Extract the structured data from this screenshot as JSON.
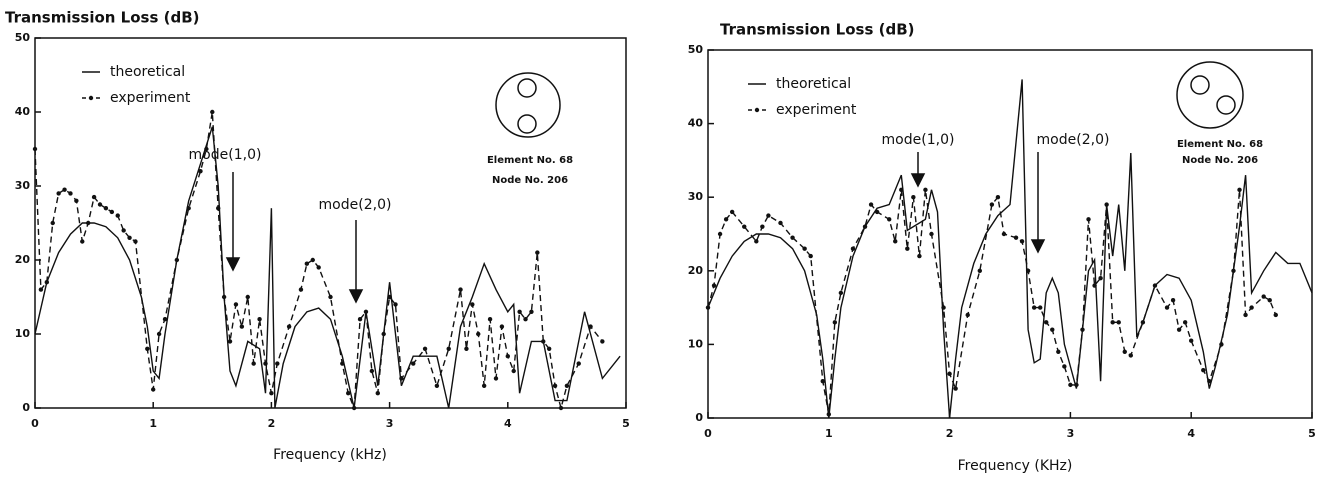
{
  "chart_data": [
    {
      "type": "line",
      "title": "Transmission Loss (dB)",
      "xlabel": "Frequency (kHz)",
      "xlim": [
        0,
        5
      ],
      "ylim": [
        0,
        50
      ],
      "xticks": [
        0,
        1,
        2,
        3,
        4,
        5
      ],
      "yticks": [
        0,
        10,
        20,
        30,
        40,
        50
      ],
      "annotations": [
        "mode(1,0)",
        "mode(2,0)",
        "Element No. 68",
        "Node No. 206"
      ],
      "series": [
        {
          "name": "theoretical",
          "color": "#111",
          "style": "solid",
          "x": [
            0,
            0.1,
            0.2,
            0.3,
            0.4,
            0.5,
            0.6,
            0.7,
            0.8,
            0.9,
            0.95,
            1.0,
            1.05,
            1.1,
            1.2,
            1.3,
            1.4,
            1.5,
            1.55,
            1.6,
            1.65,
            1.7,
            1.8,
            1.9,
            1.95,
            2.0,
            2.03,
            2.1,
            2.2,
            2.3,
            2.4,
            2.5,
            2.6,
            2.7,
            2.8,
            2.9,
            3.0,
            3.1,
            3.2,
            3.3,
            3.4,
            3.5,
            3.6,
            3.7,
            3.8,
            3.9,
            4.0,
            4.05,
            4.1,
            4.2,
            4.3,
            4.4,
            4.5,
            4.6,
            4.65,
            4.8,
            4.95
          ],
          "values": [
            10,
            17,
            21,
            23.5,
            25,
            25,
            24.5,
            23,
            20,
            15,
            11,
            5,
            4,
            10,
            20,
            28,
            33,
            38,
            30,
            15,
            5,
            3,
            9,
            8,
            2,
            27,
            0,
            6,
            11,
            13,
            13.5,
            12,
            7,
            0,
            13,
            3,
            17,
            3,
            7,
            7,
            7,
            0,
            11,
            15,
            19.5,
            16,
            13,
            14,
            2,
            9,
            9,
            1,
            1,
            9,
            13,
            4,
            7
          ]
        },
        {
          "name": "experiment",
          "color": "#111",
          "style": "dashed",
          "x": [
            0,
            0.05,
            0.1,
            0.15,
            0.2,
            0.25,
            0.3,
            0.35,
            0.4,
            0.45,
            0.5,
            0.55,
            0.6,
            0.65,
            0.7,
            0.75,
            0.8,
            0.85,
            0.95,
            1.0,
            1.05,
            1.1,
            1.2,
            1.3,
            1.4,
            1.45,
            1.5,
            1.55,
            1.6,
            1.65,
            1.7,
            1.75,
            1.8,
            1.85,
            1.9,
            1.95,
            2.0,
            2.05,
            2.15,
            2.25,
            2.3,
            2.35,
            2.4,
            2.5,
            2.6,
            2.65,
            2.7,
            2.75,
            2.8,
            2.85,
            2.9,
            2.95,
            3.0,
            3.05,
            3.1,
            3.2,
            3.3,
            3.4,
            3.5,
            3.6,
            3.65,
            3.7,
            3.75,
            3.8,
            3.85,
            3.9,
            3.95,
            4.0,
            4.05,
            4.1,
            4.15,
            4.2,
            4.25,
            4.3,
            4.35,
            4.4,
            4.45,
            4.5,
            4.6,
            4.7,
            4.8
          ],
          "values": [
            35,
            16,
            17,
            25,
            29,
            29.5,
            29,
            28,
            22.5,
            25,
            28.5,
            27.5,
            27,
            26.5,
            26,
            24,
            23,
            22.5,
            8,
            2.5,
            10,
            12,
            20,
            27,
            32,
            35,
            40,
            27,
            15,
            9,
            14,
            11,
            15,
            6,
            12,
            6,
            2,
            6,
            11,
            16,
            19.5,
            20,
            19,
            15,
            6,
            2,
            0,
            12,
            13,
            5,
            2,
            10,
            15,
            14,
            4,
            6,
            8,
            3,
            8,
            16,
            8,
            14,
            10,
            3,
            12,
            4,
            11,
            7,
            5,
            13,
            12,
            13,
            21,
            9,
            8,
            3,
            0,
            3,
            6,
            11,
            9
          ]
        }
      ]
    },
    {
      "type": "line",
      "title": "Transmission Loss (dB)",
      "xlabel": "Frequency (KHz)",
      "xlim": [
        0,
        5
      ],
      "ylim": [
        0,
        50
      ],
      "xticks": [
        0,
        1,
        2,
        3,
        4,
        5
      ],
      "yticks": [
        0,
        10,
        20,
        30,
        40,
        50
      ],
      "annotations": [
        "mode(1,0)",
        "mode(2,0)",
        "Element No. 68",
        "Node No. 206"
      ],
      "series": [
        {
          "name": "theoretical",
          "color": "#111",
          "style": "solid",
          "x": [
            0,
            0.1,
            0.2,
            0.3,
            0.4,
            0.5,
            0.6,
            0.7,
            0.8,
            0.9,
            0.95,
            1.0,
            1.05,
            1.1,
            1.2,
            1.3,
            1.4,
            1.5,
            1.6,
            1.65,
            1.7,
            1.8,
            1.85,
            1.9,
            1.95,
            2.0,
            2.05,
            2.1,
            2.2,
            2.3,
            2.4,
            2.5,
            2.6,
            2.65,
            2.7,
            2.75,
            2.8,
            2.85,
            2.9,
            2.95,
            3.0,
            3.05,
            3.1,
            3.15,
            3.2,
            3.25,
            3.3,
            3.35,
            3.4,
            3.45,
            3.5,
            3.55,
            3.6,
            3.7,
            3.8,
            3.9,
            4.0,
            4.1,
            4.15,
            4.2,
            4.3,
            4.4,
            4.45,
            4.5,
            4.6,
            4.7,
            4.8,
            4.9,
            5.0
          ],
          "values": [
            15,
            19,
            22,
            24,
            25,
            25,
            24.5,
            23,
            20,
            14,
            8,
            0,
            8,
            15,
            22,
            26,
            28.5,
            29,
            33,
            25.5,
            26,
            27,
            31,
            28,
            12,
            0,
            8,
            15,
            21,
            25,
            27.5,
            29,
            46,
            12,
            7.5,
            8,
            17,
            19,
            17,
            10,
            7,
            4,
            12,
            20,
            21.5,
            5,
            29,
            22,
            29,
            20,
            36,
            11,
            13,
            18,
            19.5,
            19,
            16,
            9,
            4,
            7,
            14,
            26,
            33,
            17,
            20,
            22.5,
            21,
            21,
            17
          ]
        },
        {
          "name": "experiment",
          "color": "#111",
          "style": "dashed",
          "x": [
            0,
            0.05,
            0.1,
            0.15,
            0.2,
            0.3,
            0.4,
            0.45,
            0.5,
            0.6,
            0.7,
            0.8,
            0.85,
            0.95,
            1.0,
            1.05,
            1.1,
            1.2,
            1.3,
            1.35,
            1.4,
            1.5,
            1.55,
            1.6,
            1.65,
            1.7,
            1.75,
            1.8,
            1.85,
            1.95,
            2.0,
            2.05,
            2.15,
            2.25,
            2.35,
            2.4,
            2.45,
            2.55,
            2.6,
            2.65,
            2.7,
            2.75,
            2.8,
            2.85,
            2.9,
            2.95,
            3.0,
            3.05,
            3.1,
            3.15,
            3.2,
            3.25,
            3.3,
            3.35,
            3.4,
            3.45,
            3.5,
            3.6,
            3.7,
            3.8,
            3.85,
            3.9,
            3.95,
            4.0,
            4.1,
            4.15,
            4.25,
            4.35,
            4.4,
            4.45,
            4.5,
            4.6,
            4.65,
            4.7
          ],
          "values": [
            15,
            18,
            25,
            27,
            28,
            26,
            24,
            26,
            27.5,
            26.5,
            24.5,
            23,
            22,
            5,
            0.5,
            13,
            17,
            23,
            26,
            29,
            28,
            27,
            24,
            31,
            23,
            30,
            22,
            31,
            25,
            15,
            6,
            4,
            14,
            20,
            29,
            30,
            25,
            24.5,
            24,
            20,
            15,
            15,
            13,
            12,
            9,
            7,
            4.5,
            4.5,
            12,
            27,
            18,
            19,
            29,
            13,
            13,
            9,
            8.5,
            13,
            18,
            15,
            16,
            12,
            13,
            10.5,
            6.5,
            5,
            10,
            20,
            31,
            14,
            15,
            16.5,
            16,
            14
          ]
        }
      ]
    }
  ]
}
